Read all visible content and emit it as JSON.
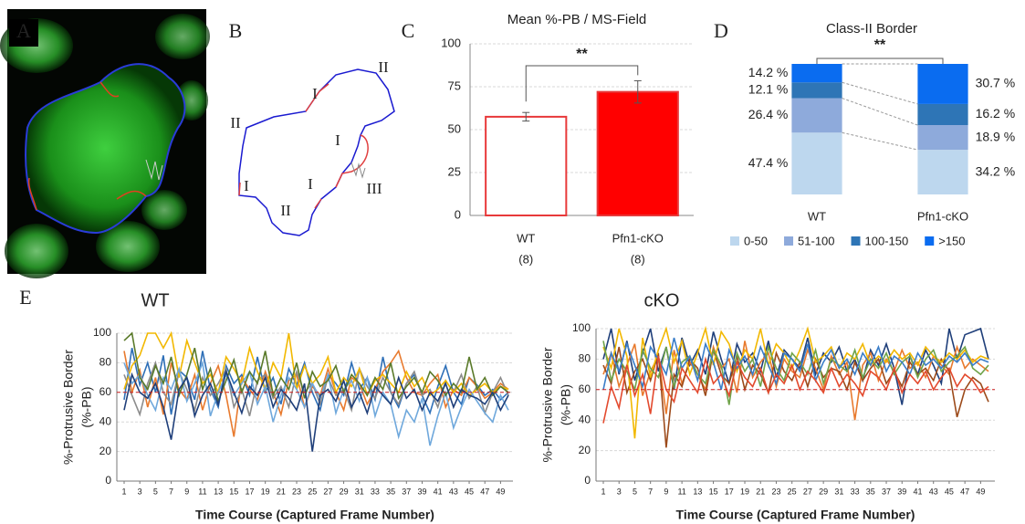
{
  "figure": {
    "panel_labels": [
      "A",
      "B",
      "C",
      "D",
      "E"
    ],
    "diagram_labels": [
      "II",
      "I",
      "II",
      "I",
      "I",
      "I",
      "III",
      "II"
    ]
  },
  "chart_data": [
    {
      "type": "bar",
      "title": "Mean %-PB / MS-Field",
      "categories": [
        "WT",
        "Pfn1-cKO"
      ],
      "category_notes": [
        "(8)",
        "(8)"
      ],
      "values": [
        57.5,
        72
      ],
      "errors": [
        2.5,
        6.5
      ],
      "fills": [
        "#ffffff",
        "#ff0000"
      ],
      "color": "#e8393a",
      "ylim": [
        0,
        100
      ],
      "yticks": [
        0,
        25,
        50,
        75,
        100
      ],
      "grid": true,
      "annotation": "**"
    },
    {
      "type": "stacked_bar",
      "title": "Class-II Border",
      "categories": [
        "WT",
        "Pfn1-cKO"
      ],
      "annotation": "**",
      "series": [
        {
          "name": "0-50",
          "color": "#bdd7ee",
          "values": [
            47.4,
            34.2
          ],
          "value_labels": [
            "47.4 %",
            "34.2 %"
          ]
        },
        {
          "name": "51-100",
          "color": "#8eaadb",
          "values": [
            26.4,
            18.9
          ],
          "value_labels": [
            "26.4 %",
            "18.9 %"
          ]
        },
        {
          "name": "100-150",
          "color": "#2e75b6",
          "values": [
            12.1,
            16.2
          ],
          "value_labels": [
            "12.1 %",
            "16.2 %"
          ]
        },
        {
          "name": ">150",
          "color": "#0a6cf0",
          "values": [
            14.2,
            30.7
          ],
          "value_labels": [
            "14.2 %",
            "30.7 %"
          ]
        }
      ]
    },
    {
      "type": "line",
      "title": "WT",
      "x_label": "Time Course (Captured Frame Number)",
      "y_label": [
        "%-Protrusive Border",
        "(%-PB)"
      ],
      "x": [
        1,
        2,
        3,
        4,
        5,
        6,
        7,
        8,
        9,
        10,
        11,
        12,
        13,
        14,
        15,
        16,
        17,
        18,
        19,
        20,
        21,
        22,
        23,
        24,
        25,
        26,
        27,
        28,
        29,
        30,
        31,
        32,
        33,
        34,
        35,
        36,
        37,
        38,
        39,
        40,
        41,
        42,
        43,
        44,
        45,
        46,
        47,
        48,
        49,
        50
      ],
      "xlim": [
        1,
        50
      ],
      "xticks": [
        1,
        3,
        5,
        7,
        9,
        11,
        13,
        15,
        17,
        19,
        21,
        23,
        25,
        27,
        29,
        31,
        33,
        35,
        37,
        39,
        41,
        43,
        45,
        47,
        49
      ],
      "ylim": [
        0,
        100
      ],
      "yticks": [
        0,
        20,
        40,
        60,
        80,
        100
      ],
      "grid": true,
      "reference_line": 60,
      "series": [
        {
          "color": "#2e6fb7",
          "values": [
            55,
            90,
            65,
            80,
            60,
            85,
            45,
            75,
            70,
            55,
            88,
            62,
            50,
            78,
            66,
            72,
            58,
            84,
            60,
            70,
            52,
            76,
            65,
            80,
            60,
            48,
            72,
            66,
            58,
            80,
            62,
            70,
            55,
            84,
            60,
            50,
            66,
            72,
            58,
            46,
            64,
            78,
            60,
            52,
            70,
            65,
            58,
            62,
            55,
            60
          ]
        },
        {
          "color": "#e87a2e",
          "values": [
            88,
            60,
            75,
            50,
            70,
            45,
            80,
            62,
            55,
            72,
            48,
            66,
            78,
            58,
            30,
            70,
            62,
            55,
            74,
            60,
            45,
            68,
            72,
            50,
            64,
            58,
            76,
            60,
            48,
            70,
            66,
            52,
            62,
            74,
            80,
            88,
            70,
            60,
            58,
            66,
            72,
            50,
            62,
            58,
            70,
            64,
            56,
            60,
            66,
            62
          ]
        },
        {
          "color": "#8c8c8c",
          "values": [
            72,
            58,
            45,
            66,
            80,
            60,
            52,
            74,
            62,
            48,
            70,
            58,
            66,
            76,
            50,
            62,
            44,
            68,
            72,
            56,
            64,
            50,
            74,
            60,
            66,
            52,
            70,
            58,
            62,
            48,
            76,
            64,
            56,
            70,
            60,
            52,
            66,
            74,
            58,
            62,
            50,
            68,
            60,
            72,
            56,
            64,
            46,
            60,
            70,
            58
          ]
        },
        {
          "color": "#f2b800",
          "values": [
            62,
            78,
            85,
            100,
            100,
            90,
            100,
            70,
            95,
            80,
            66,
            72,
            60,
            84,
            76,
            66,
            90,
            74,
            62,
            80,
            70,
            100,
            62,
            78,
            66,
            72,
            84,
            60,
            70,
            64,
            76,
            58,
            68,
            72,
            66,
            60,
            74,
            64,
            70,
            58,
            62,
            68,
            60,
            66,
            58,
            62,
            66,
            60,
            64,
            62
          ]
        },
        {
          "color": "#6fa8dc",
          "values": [
            80,
            66,
            72,
            58,
            48,
            70,
            62,
            76,
            54,
            66,
            80,
            44,
            60,
            72,
            58,
            66,
            74,
            52,
            64,
            40,
            58,
            70,
            62,
            50,
            66,
            56,
            72,
            46,
            62,
            68,
            54,
            70,
            44,
            60,
            52,
            30,
            48,
            40,
            56,
            24,
            44,
            60,
            36,
            50,
            62,
            54,
            46,
            40,
            58,
            48
          ]
        },
        {
          "color": "#5a7a2a",
          "values": [
            95,
            100,
            70,
            62,
            78,
            66,
            84,
            58,
            72,
            90,
            62,
            76,
            54,
            68,
            82,
            60,
            74,
            66,
            88,
            58,
            70,
            62,
            80,
            56,
            74,
            64,
            68,
            78,
            60,
            72,
            66,
            58,
            70,
            62,
            80,
            56,
            64,
            70,
            60,
            74,
            68,
            58,
            66,
            60,
            84,
            62,
            70,
            58,
            64,
            60
          ]
        },
        {
          "color": "#1f3f7a",
          "values": [
            48,
            72,
            60,
            56,
            66,
            50,
            28,
            62,
            70,
            44,
            58,
            66,
            52,
            74,
            60,
            46,
            64,
            58,
            70,
            50,
            62,
            56,
            48,
            66,
            20,
            58,
            62,
            54,
            68,
            50,
            60,
            46,
            64,
            58,
            52,
            70,
            56,
            62,
            48,
            60,
            54,
            66,
            50,
            62,
            58,
            56,
            52,
            60,
            48,
            58
          ]
        }
      ]
    },
    {
      "type": "line",
      "title": "cKO",
      "x_label": "Time Course (Captured Frame Number)",
      "y_label": [
        "%-Protrusive Border",
        "(%-PB)"
      ],
      "x": [
        1,
        2,
        3,
        4,
        5,
        6,
        7,
        8,
        9,
        10,
        11,
        12,
        13,
        14,
        15,
        16,
        17,
        18,
        19,
        20,
        21,
        22,
        23,
        24,
        25,
        26,
        27,
        28,
        29,
        30,
        31,
        32,
        33,
        34,
        35,
        36,
        37,
        38,
        39,
        40,
        41,
        42,
        43,
        44,
        45,
        46,
        47,
        48,
        49,
        50
      ],
      "xlim": [
        1,
        50
      ],
      "xticks": [
        1,
        3,
        5,
        7,
        9,
        11,
        13,
        15,
        17,
        19,
        21,
        23,
        25,
        27,
        29,
        31,
        33,
        35,
        37,
        39,
        41,
        43,
        45,
        47,
        49
      ],
      "ylim": [
        0,
        100
      ],
      "yticks": [
        0,
        20,
        40,
        60,
        80,
        100
      ],
      "grid": true,
      "reference_line": 60,
      "series": [
        {
          "color": "#1f3f7a",
          "values": [
            80,
            100,
            70,
            92,
            66,
            84,
            100,
            72,
            88,
            60,
            94,
            76,
            86,
            70,
            98,
            80,
            64,
            90,
            78,
            84,
            72,
            92,
            68,
            86,
            80,
            74,
            94,
            70,
            84,
            78,
            88,
            72,
            80,
            66,
            86,
            76,
            90,
            74,
            50,
            82,
            70,
            86,
            76,
            64,
            100,
            80,
            96,
            98,
            100,
            80
          ]
        },
        {
          "color": "#e87a2e",
          "values": [
            70,
            84,
            62,
            76,
            90,
            56,
            72,
            82,
            44,
            86,
            64,
            78,
            70,
            60,
            88,
            74,
            80,
            58,
            92,
            68,
            78,
            84,
            62,
            80,
            72,
            68,
            86,
            74,
            60,
            82,
            70,
            78,
            40,
            76,
            84,
            66,
            80,
            72,
            86,
            74,
            78,
            68,
            82,
            76,
            70,
            88,
            74,
            80,
            76,
            72
          ]
        },
        {
          "color": "#9c4a1a",
          "values": [
            76,
            64,
            88,
            58,
            72,
            80,
            66,
            84,
            22,
            70,
            62,
            80,
            74,
            56,
            86,
            70,
            64,
            82,
            60,
            76,
            70,
            58,
            84,
            72,
            66,
            78,
            62,
            80,
            68,
            74,
            72,
            60,
            78,
            66,
            74,
            80,
            64,
            72,
            62,
            78,
            70,
            74,
            66,
            80,
            72,
            42,
            60,
            68,
            64,
            52
          ]
        },
        {
          "color": "#f2b800",
          "values": [
            88,
            74,
            100,
            82,
            28,
            94,
            68,
            86,
            100,
            78,
            92,
            70,
            84,
            100,
            76,
            98,
            90,
            72,
            86,
            80,
            100,
            76,
            90,
            84,
            74,
            86,
            100,
            78,
            82,
            88,
            74,
            84,
            80,
            90,
            76,
            82,
            78,
            86,
            80,
            84,
            76,
            88,
            82,
            78,
            84,
            80,
            86,
            78,
            82,
            80
          ]
        },
        {
          "color": "#6fa34a",
          "values": [
            92,
            66,
            80,
            72,
            60,
            86,
            74,
            68,
            88,
            62,
            78,
            82,
            70,
            64,
            86,
            76,
            50,
            84,
            72,
            80,
            62,
            88,
            74,
            66,
            84,
            78,
            70,
            86,
            64,
            80,
            76,
            72,
            86,
            68,
            80,
            74,
            84,
            70,
            78,
            82,
            68,
            80,
            86,
            72,
            78,
            82,
            88,
            74,
            70,
            76
          ]
        },
        {
          "color": "#3a7dc8",
          "values": [
            60,
            84,
            72,
            90,
            76,
            62,
            88,
            80,
            70,
            94,
            74,
            82,
            66,
            90,
            78,
            60,
            86,
            74,
            82,
            70,
            88,
            76,
            64,
            84,
            80,
            72,
            90,
            66,
            78,
            86,
            74,
            80,
            70,
            84,
            76,
            88,
            72,
            82,
            78,
            70,
            84,
            76,
            80,
            74,
            82,
            78,
            84,
            76,
            80,
            78
          ]
        },
        {
          "color": "#e34a2e",
          "values": [
            38,
            62,
            48,
            76,
            56,
            70,
            44,
            82,
            60,
            52,
            74,
            66,
            58,
            80,
            64,
            70,
            56,
            78,
            68,
            62,
            74,
            58,
            70,
            64,
            76,
            60,
            72,
            66,
            58,
            74,
            62,
            70,
            64,
            56,
            72,
            68,
            60,
            74,
            58,
            70,
            64,
            72,
            60,
            68,
            74,
            62,
            70,
            66,
            58,
            62
          ]
        }
      ]
    }
  ]
}
